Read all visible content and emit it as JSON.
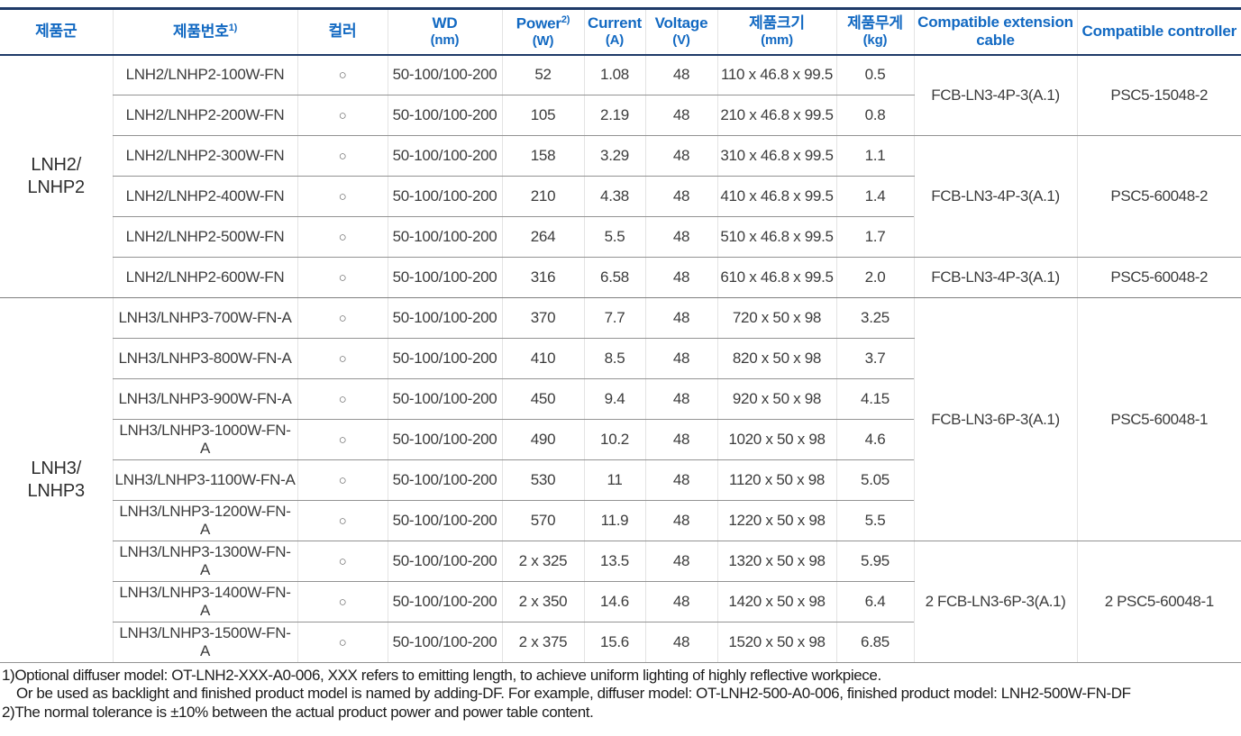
{
  "colors": {
    "header_text_blue": "#1269c2",
    "frame_navy": "#1e3a68",
    "row_line_gray": "#939393",
    "column_divider_gray": "#e3e3e3"
  },
  "table": {
    "columns": [
      {
        "label": "제품군",
        "sup": "",
        "sub": ""
      },
      {
        "label": "제품번호",
        "sup": "1)",
        "sub": ""
      },
      {
        "label": "컬러",
        "sup": "",
        "sub": ""
      },
      {
        "label": "WD",
        "sup": "",
        "sub": "(nm)"
      },
      {
        "label": "Power",
        "sup": "2)",
        "sub": "(W)"
      },
      {
        "label": "Current",
        "sup": "",
        "sub": "(A)"
      },
      {
        "label": "Voltage",
        "sup": "",
        "sub": "(V)"
      },
      {
        "label": "제품크기",
        "sup": "",
        "sub": "(mm)"
      },
      {
        "label": "제품무게",
        "sup": "",
        "sub": "(kg)"
      },
      {
        "label": "Compatible extension cable",
        "sup": "",
        "sub": ""
      },
      {
        "label": "Compatible controller",
        "sup": "",
        "sub": ""
      }
    ],
    "groups": [
      {
        "label_line1": "LNH2/",
        "label_line2": "LNHP2",
        "rows": [
          {
            "part": "LNH2/LNHP2-100W-FN",
            "color": "○",
            "wd": "50-100/100-200",
            "power": "52",
            "current": "1.08",
            "voltage": "48",
            "size": "110 x 46.8 x 99.5",
            "weight": "0.5"
          },
          {
            "part": "LNH2/LNHP2-200W-FN",
            "color": "○",
            "wd": "50-100/100-200",
            "power": "105",
            "current": "2.19",
            "voltage": "48",
            "size": "210 x 46.8 x 99.5",
            "weight": "0.8"
          },
          {
            "part": "LNH2/LNHP2-300W-FN",
            "color": "○",
            "wd": "50-100/100-200",
            "power": "158",
            "current": "3.29",
            "voltage": "48",
            "size": "310 x 46.8 x 99.5",
            "weight": "1.1"
          },
          {
            "part": "LNH2/LNHP2-400W-FN",
            "color": "○",
            "wd": "50-100/100-200",
            "power": "210",
            "current": "4.38",
            "voltage": "48",
            "size": "410 x 46.8 x 99.5",
            "weight": "1.4"
          },
          {
            "part": "LNH2/LNHP2-500W-FN",
            "color": "○",
            "wd": "50-100/100-200",
            "power": "264",
            "current": "5.5",
            "voltage": "48",
            "size": "510 x 46.8 x 99.5",
            "weight": "1.7"
          },
          {
            "part": "LNH2/LNHP2-600W-FN",
            "color": "○",
            "wd": "50-100/100-200",
            "power": "316",
            "current": "6.58",
            "voltage": "48",
            "size": "610 x 46.8 x 99.5",
            "weight": "2.0"
          }
        ]
      },
      {
        "label_line1": "LNH3/",
        "label_line2": "LNHP3",
        "rows": [
          {
            "part": "LNH3/LNHP3-700W-FN-A",
            "color": "○",
            "wd": "50-100/100-200",
            "power": "370",
            "current": "7.7",
            "voltage": "48",
            "size": "720 x 50 x 98",
            "weight": "3.25"
          },
          {
            "part": "LNH3/LNHP3-800W-FN-A",
            "color": "○",
            "wd": "50-100/100-200",
            "power": "410",
            "current": "8.5",
            "voltage": "48",
            "size": "820 x 50 x 98",
            "weight": "3.7"
          },
          {
            "part": "LNH3/LNHP3-900W-FN-A",
            "color": "○",
            "wd": "50-100/100-200",
            "power": "450",
            "current": "9.4",
            "voltage": "48",
            "size": "920 x 50 x 98",
            "weight": "4.15"
          },
          {
            "part": "LNH3/LNHP3-1000W-FN-A",
            "color": "○",
            "wd": "50-100/100-200",
            "power": "490",
            "current": "10.2",
            "voltage": "48",
            "size": "1020 x 50 x 98",
            "weight": "4.6"
          },
          {
            "part": "LNH3/LNHP3-1100W-FN-A",
            "color": "○",
            "wd": "50-100/100-200",
            "power": "530",
            "current": "11",
            "voltage": "48",
            "size": "1120 x 50 x 98",
            "weight": "5.05"
          },
          {
            "part": "LNH3/LNHP3-1200W-FN-A",
            "color": "○",
            "wd": "50-100/100-200",
            "power": "570",
            "current": "11.9",
            "voltage": "48",
            "size": "1220 x 50 x 98",
            "weight": "5.5"
          },
          {
            "part": "LNH3/LNHP3-1300W-FN-A",
            "color": "○",
            "wd": "50-100/100-200",
            "power": "2 x 325",
            "current": "13.5",
            "voltage": "48",
            "size": "1320 x 50 x 98",
            "weight": "5.95"
          },
          {
            "part": "LNH3/LNHP3-1400W-FN-A",
            "color": "○",
            "wd": "50-100/100-200",
            "power": "2 x 350",
            "current": "14.6",
            "voltage": "48",
            "size": "1420 x 50 x 98",
            "weight": "6.4"
          },
          {
            "part": "LNH3/LNHP3-1500W-FN-A",
            "color": "○",
            "wd": "50-100/100-200",
            "power": "2 x 375",
            "current": "15.6",
            "voltage": "48",
            "size": "1520 x 50 x 98",
            "weight": "6.85"
          }
        ]
      }
    ],
    "cable_spans": [
      {
        "start": 0,
        "count": 2,
        "cable": "FCB-LN3-4P-3(A.1)",
        "controller": "PSC5-15048-2"
      },
      {
        "start": 2,
        "count": 3,
        "cable": "FCB-LN3-4P-3(A.1)",
        "controller": "PSC5-60048-2"
      },
      {
        "start": 5,
        "count": 1,
        "cable": "FCB-LN3-4P-3(A.1)",
        "controller": "PSC5-60048-2"
      },
      {
        "start": 6,
        "count": 6,
        "cable": "FCB-LN3-6P-3(A.1)",
        "controller": "PSC5-60048-1"
      },
      {
        "start": 12,
        "count": 3,
        "cable": "2 FCB-LN3-6P-3(A.1)",
        "controller": "2 PSC5-60048-1"
      }
    ]
  },
  "footnotes": {
    "line1": "1)Optional diffuser model: OT-LNH2-XXX-A0-006, XXX refers to emitting length, to achieve uniform lighting of highly reflective workpiece.",
    "line2": "Or be used as backlight and finished product model is named by adding-DF. For example, diffuser model: OT-LNH2-500-A0-006, finished product model: LNH2-500W-FN-DF",
    "line3": "2)The normal tolerance is ±10% between the actual product power and power table content."
  }
}
